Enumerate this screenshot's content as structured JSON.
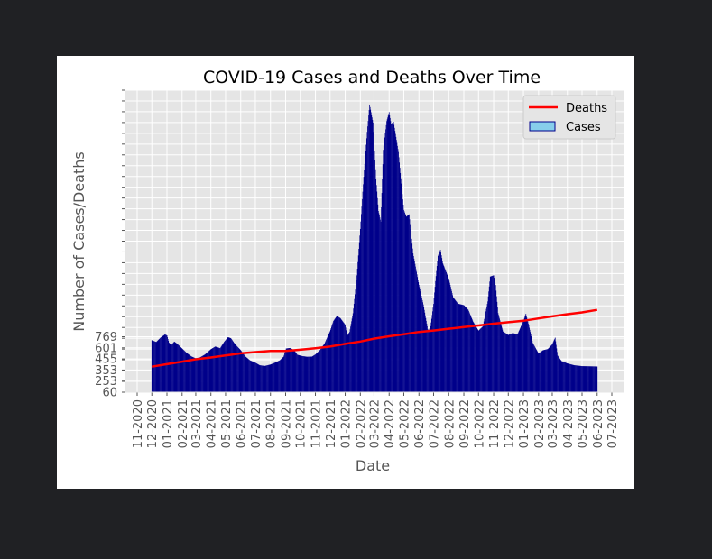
{
  "chart_data": {
    "type": "area",
    "title": "COVID-19 Cases and Deaths Over Time",
    "xlabel": "Date",
    "ylabel": "Number of Cases/Deaths",
    "x_range": [
      "2020-11-01",
      "2023-07-01"
    ],
    "x_tick_labels": [
      "11-2020",
      "12-2020",
      "01-2021",
      "02-2021",
      "03-2021",
      "04-2021",
      "05-2021",
      "06-2021",
      "07-2021",
      "08-2021",
      "09-2021",
      "10-2021",
      "11-2021",
      "12-2021",
      "01-2022",
      "02-2022",
      "03-2022",
      "04-2022",
      "05-2022",
      "06-2022",
      "07-2022",
      "08-2022",
      "09-2022",
      "10-2022",
      "11-2022",
      "12-2022",
      "01-2023",
      "02-2023",
      "03-2023",
      "04-2023",
      "05-2023",
      "06-2023",
      "07-2023"
    ],
    "y_tick_labels": [
      "60",
      "253",
      "353",
      "455",
      "601",
      "769"
    ],
    "grid": true,
    "legend_position": "top-right",
    "series": [
      {
        "name": "Cases",
        "style": "bar",
        "color": "#00008b",
        "legend_swatch": "#87ceeb",
        "points": [
          [
            "2020-12-01",
            1505
          ],
          [
            "2020-12-10",
            1455
          ],
          [
            "2020-12-20",
            1590
          ],
          [
            "2020-12-28",
            1665
          ],
          [
            "2021-01-01",
            1640
          ],
          [
            "2021-01-05",
            1440
          ],
          [
            "2021-01-10",
            1370
          ],
          [
            "2021-01-16",
            1465
          ],
          [
            "2021-01-22",
            1405
          ],
          [
            "2021-02-01",
            1275
          ],
          [
            "2021-02-10",
            1155
          ],
          [
            "2021-02-20",
            1055
          ],
          [
            "2021-03-01",
            1000
          ],
          [
            "2021-03-10",
            1030
          ],
          [
            "2021-03-20",
            1110
          ],
          [
            "2021-04-01",
            1255
          ],
          [
            "2021-04-10",
            1330
          ],
          [
            "2021-04-20",
            1285
          ],
          [
            "2021-04-28",
            1455
          ],
          [
            "2021-05-06",
            1590
          ],
          [
            "2021-05-12",
            1560
          ],
          [
            "2021-05-20",
            1400
          ],
          [
            "2021-06-01",
            1230
          ],
          [
            "2021-06-10",
            1060
          ],
          [
            "2021-06-20",
            945
          ],
          [
            "2021-07-01",
            880
          ],
          [
            "2021-07-10",
            810
          ],
          [
            "2021-07-20",
            790
          ],
          [
            "2021-08-01",
            830
          ],
          [
            "2021-08-10",
            880
          ],
          [
            "2021-08-20",
            945
          ],
          [
            "2021-08-28",
            1050
          ],
          [
            "2021-09-02",
            1275
          ],
          [
            "2021-09-10",
            1290
          ],
          [
            "2021-09-18",
            1235
          ],
          [
            "2021-09-25",
            1100
          ],
          [
            "2021-10-05",
            1065
          ],
          [
            "2021-10-15",
            1045
          ],
          [
            "2021-10-25",
            1050
          ],
          [
            "2021-11-01",
            1110
          ],
          [
            "2021-11-10",
            1225
          ],
          [
            "2021-11-20",
            1420
          ],
          [
            "2021-12-01",
            1755
          ],
          [
            "2021-12-08",
            2040
          ],
          [
            "2021-12-15",
            2180
          ],
          [
            "2021-12-22",
            2120
          ],
          [
            "2022-01-01",
            1935
          ],
          [
            "2022-01-05",
            1630
          ],
          [
            "2022-01-10",
            1735
          ],
          [
            "2022-01-17",
            2255
          ],
          [
            "2022-01-25",
            3310
          ],
          [
            "2022-02-01",
            4600
          ],
          [
            "2022-02-08",
            6050
          ],
          [
            "2022-02-15",
            7300
          ],
          [
            "2022-02-20",
            8060
          ],
          [
            "2022-02-27",
            7560
          ],
          [
            "2022-03-05",
            6000
          ],
          [
            "2022-03-10",
            5100
          ],
          [
            "2022-03-15",
            4800
          ],
          [
            "2022-03-20",
            6800
          ],
          [
            "2022-03-27",
            7600
          ],
          [
            "2022-04-01",
            7850
          ],
          [
            "2022-04-05",
            7520
          ],
          [
            "2022-04-10",
            7580
          ],
          [
            "2022-04-20",
            6740
          ],
          [
            "2022-05-01",
            5130
          ],
          [
            "2022-05-06",
            4940
          ],
          [
            "2022-05-12",
            5005
          ],
          [
            "2022-05-20",
            3920
          ],
          [
            "2022-06-01",
            3045
          ],
          [
            "2022-06-10",
            2500
          ],
          [
            "2022-06-15",
            2120
          ],
          [
            "2022-06-20",
            1740
          ],
          [
            "2022-06-25",
            1895
          ],
          [
            "2022-07-01",
            2515
          ],
          [
            "2022-07-05",
            3150
          ],
          [
            "2022-07-10",
            3850
          ],
          [
            "2022-07-15",
            4020
          ],
          [
            "2022-07-20",
            3640
          ],
          [
            "2022-08-01",
            3220
          ],
          [
            "2022-08-10",
            2700
          ],
          [
            "2022-08-20",
            2520
          ],
          [
            "2022-09-01",
            2480
          ],
          [
            "2022-09-10",
            2350
          ],
          [
            "2022-09-20",
            2020
          ],
          [
            "2022-10-01",
            1770
          ],
          [
            "2022-10-10",
            1890
          ],
          [
            "2022-10-20",
            2585
          ],
          [
            "2022-10-25",
            3275
          ],
          [
            "2022-11-01",
            3310
          ],
          [
            "2022-11-05",
            3040
          ],
          [
            "2022-11-10",
            2260
          ],
          [
            "2022-11-20",
            1750
          ],
          [
            "2022-12-01",
            1650
          ],
          [
            "2022-12-10",
            1705
          ],
          [
            "2022-12-20",
            1670
          ],
          [
            "2023-01-01",
            2045
          ],
          [
            "2023-01-06",
            2240
          ],
          [
            "2023-01-12",
            1915
          ],
          [
            "2023-01-20",
            1430
          ],
          [
            "2023-02-01",
            1135
          ],
          [
            "2023-02-10",
            1225
          ],
          [
            "2023-02-20",
            1260
          ],
          [
            "2023-03-01",
            1390
          ],
          [
            "2023-03-07",
            1575
          ],
          [
            "2023-03-12",
            1080
          ],
          [
            "2023-03-20",
            925
          ],
          [
            "2023-04-01",
            860
          ],
          [
            "2023-04-15",
            810
          ],
          [
            "2023-05-01",
            785
          ],
          [
            "2023-06-01",
            775
          ]
        ]
      },
      {
        "name": "Deaths",
        "style": "line",
        "color": "#ff0000",
        "points": [
          [
            "2020-12-01",
            770
          ],
          [
            "2021-01-01",
            840
          ],
          [
            "2021-02-01",
            910
          ],
          [
            "2021-03-01",
            975
          ],
          [
            "2021-04-01",
            1025
          ],
          [
            "2021-05-01",
            1080
          ],
          [
            "2021-06-01",
            1140
          ],
          [
            "2021-07-01",
            1175
          ],
          [
            "2021-08-01",
            1205
          ],
          [
            "2021-09-01",
            1205
          ],
          [
            "2021-10-01",
            1240
          ],
          [
            "2021-11-01",
            1280
          ],
          [
            "2021-12-01",
            1330
          ],
          [
            "2022-01-01",
            1405
          ],
          [
            "2022-02-01",
            1470
          ],
          [
            "2022-03-01",
            1550
          ],
          [
            "2022-04-01",
            1615
          ],
          [
            "2022-05-01",
            1670
          ],
          [
            "2022-06-01",
            1735
          ],
          [
            "2022-07-01",
            1775
          ],
          [
            "2022-08-01",
            1825
          ],
          [
            "2022-09-01",
            1870
          ],
          [
            "2022-10-01",
            1915
          ],
          [
            "2022-11-01",
            1965
          ],
          [
            "2022-12-01",
            2005
          ],
          [
            "2023-01-01",
            2045
          ],
          [
            "2023-02-01",
            2110
          ],
          [
            "2023-03-01",
            2170
          ],
          [
            "2023-04-01",
            2230
          ],
          [
            "2023-05-01",
            2280
          ],
          [
            "2023-06-01",
            2350
          ]
        ]
      }
    ]
  }
}
